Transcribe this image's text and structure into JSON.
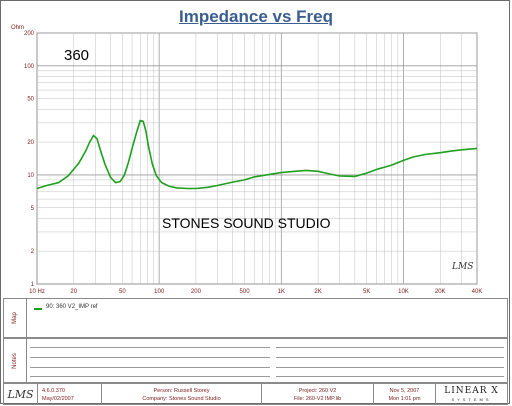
{
  "title": "Impedance vs Freq",
  "y_unit_label": "Ohm",
  "annotations": {
    "model": "360",
    "studio": "STONES SOUND STUDIO",
    "plot_logo": "LMS"
  },
  "colors": {
    "title": "#3a5e92",
    "curve": "#1ea01e",
    "tick_labels": "#7a1a1a",
    "grid": "#c0c0c0"
  },
  "chart_data": {
    "type": "line",
    "title": "Impedance vs Freq",
    "xlabel": "",
    "ylabel": "Ohm",
    "x_scale": "log",
    "y_scale": "log",
    "xlim": [
      10,
      40000
    ],
    "ylim": [
      1,
      200
    ],
    "grid": true,
    "x_ticks": [
      10,
      20,
      50,
      100,
      200,
      500,
      1000,
      2000,
      5000,
      10000,
      20000,
      40000
    ],
    "x_tick_labels": [
      "10 Hz",
      "20",
      "50",
      "100",
      "200",
      "500",
      "1K",
      "2K",
      "5K",
      "10K",
      "20K",
      "40K"
    ],
    "y_ticks": [
      1,
      2,
      5,
      10,
      20,
      50,
      100,
      200
    ],
    "y_tick_labels": [
      "1",
      "2",
      "5",
      "10",
      "20",
      "50",
      "100",
      "200"
    ],
    "series": [
      {
        "name": "90: 360 V2_IMP  ref",
        "x": [
          10,
          12,
          15,
          18,
          22,
          25,
          27,
          29,
          31,
          33,
          36,
          40,
          44,
          48,
          52,
          56,
          60,
          65,
          70,
          74,
          78,
          82,
          88,
          95,
          105,
          120,
          140,
          170,
          200,
          250,
          300,
          400,
          500,
          600,
          800,
          1000,
          1300,
          1600,
          2000,
          2500,
          3000,
          4000,
          5000,
          6000,
          8000,
          10000,
          12000,
          15000,
          20000,
          25000,
          30000,
          40000
        ],
        "y": [
          7.5,
          8.0,
          8.5,
          9.8,
          12.8,
          16.5,
          20.0,
          23.0,
          21.5,
          17.0,
          12.5,
          9.5,
          8.5,
          8.7,
          10.0,
          13.0,
          17.5,
          24.0,
          31.5,
          31.0,
          25.0,
          18.0,
          12.5,
          9.8,
          8.5,
          7.9,
          7.6,
          7.5,
          7.5,
          7.7,
          8.0,
          8.6,
          9.0,
          9.6,
          10.1,
          10.5,
          10.8,
          11.0,
          10.8,
          10.2,
          9.8,
          9.7,
          10.4,
          11.2,
          12.3,
          13.6,
          14.6,
          15.4,
          16.0,
          16.6,
          17.0,
          17.5
        ]
      }
    ]
  },
  "map_section": {
    "label": "Map",
    "legend_entry": "90: 360 V2_IMP  ref"
  },
  "notes_section": {
    "label": "Notes"
  },
  "footer": {
    "logo": "LMS",
    "version": "4.6.0.370",
    "version_date": "May/02/2007",
    "person": "Person: Russell Storey",
    "company": "Company: Stones Sound Studio",
    "project": "Project: 260 V2",
    "file": "File: 260-V2 IMP.lib",
    "date": "Nov 5, 2007",
    "time": "Mon  1:01 pm",
    "brand": "LINEAR X",
    "brand_sub": "SYSTEMS"
  }
}
